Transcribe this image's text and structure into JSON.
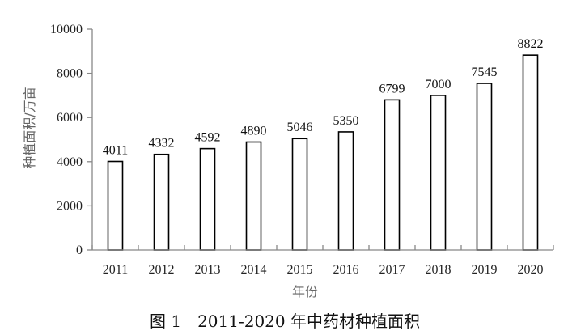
{
  "chart_data": {
    "type": "bar",
    "categories": [
      "2011",
      "2012",
      "2013",
      "2014",
      "2015",
      "2016",
      "2017",
      "2018",
      "2019",
      "2020"
    ],
    "values": [
      4011,
      4332,
      4592,
      4890,
      5046,
      5350,
      6799,
      7000,
      7545,
      8822
    ],
    "xlabel": "年份",
    "ylabel": "种植面积/万亩",
    "ylim": [
      0,
      10000
    ],
    "yticks": [
      0,
      2000,
      4000,
      6000,
      8000,
      10000
    ],
    "grid": false,
    "legend": "none",
    "bar_fill": "#ffffff",
    "bar_stroke": "#000000",
    "axis_color": "#888888"
  },
  "caption": "图 1　2011-2020 年中药材种植面积"
}
